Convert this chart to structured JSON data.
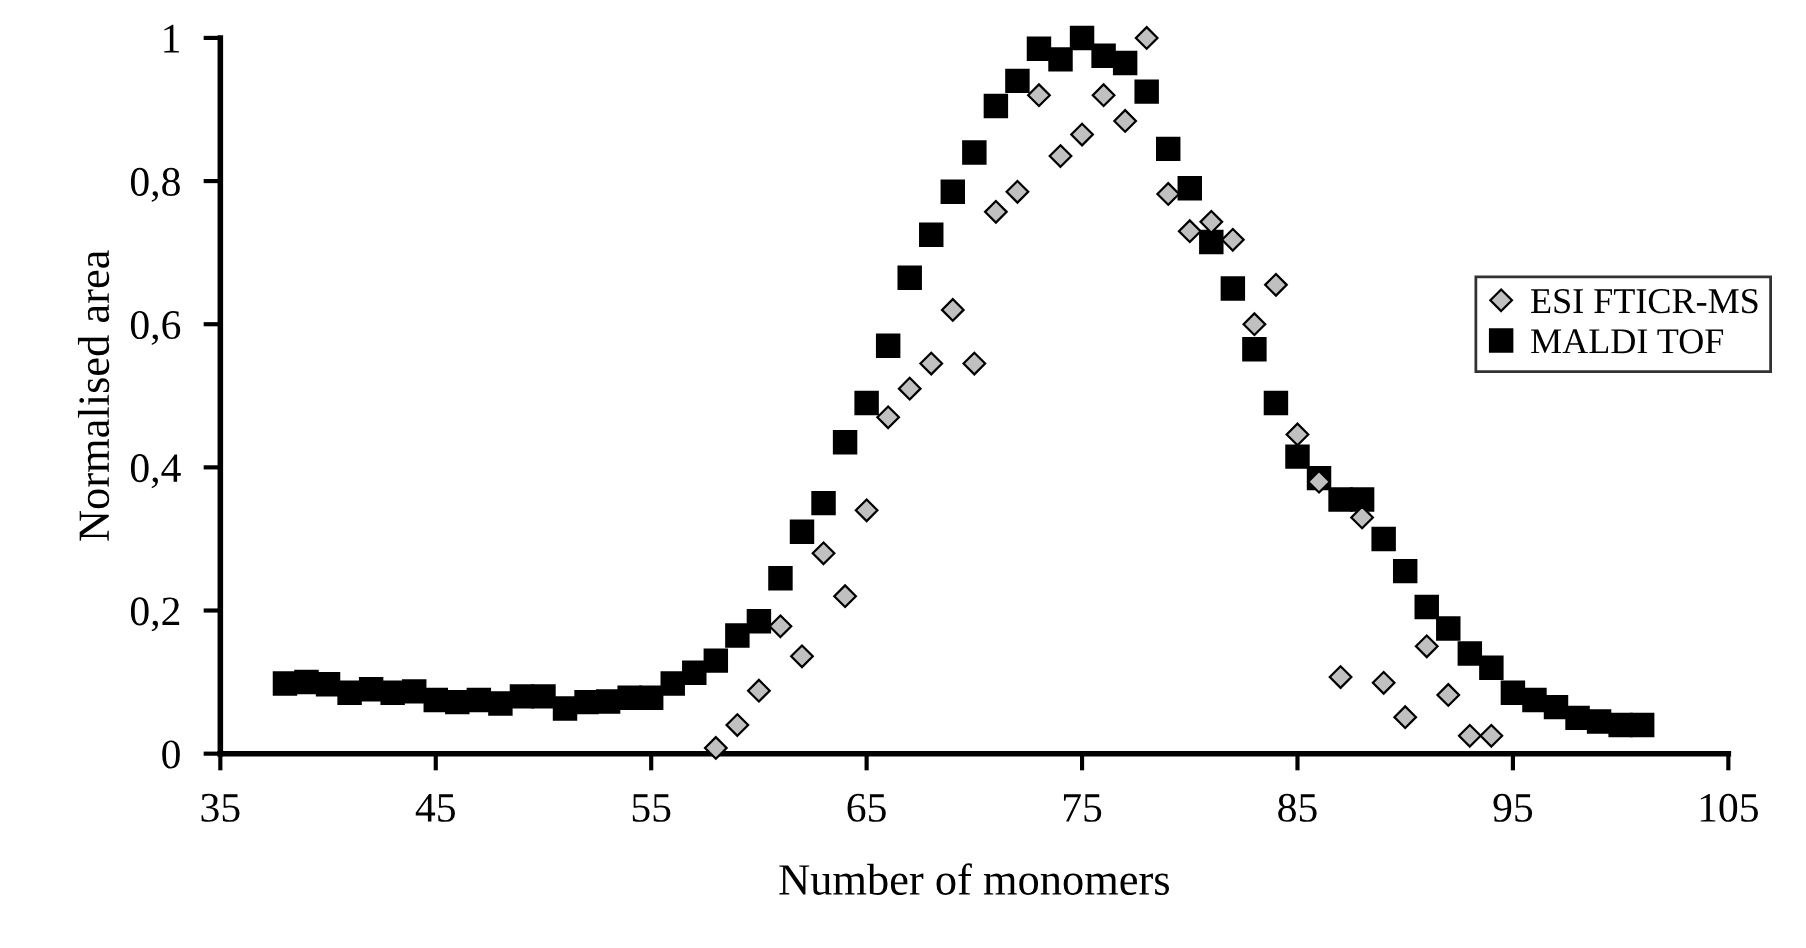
{
  "chart_data": {
    "type": "scatter",
    "xlabel": "Number of monomers",
    "ylabel": "Normalised area",
    "xlim": [
      35,
      105
    ],
    "xticks": [
      35,
      45,
      55,
      65,
      75,
      85,
      95,
      105
    ],
    "ylim": [
      0,
      1
    ],
    "yticks": [
      0,
      {
        "value": 0.2,
        "label": "0,2"
      },
      {
        "value": 0.4,
        "label": "0,4"
      },
      {
        "value": 0.6,
        "label": "0,6"
      },
      {
        "value": 0.8,
        "label": "0,8"
      },
      1
    ],
    "grid": false,
    "legend": "right",
    "series": [
      {
        "name": "ESI FTICR-MS",
        "color": "#c0c0c0",
        "marker": "diamond",
        "x": [
          58,
          59,
          60,
          61,
          62,
          63,
          64,
          65,
          66,
          67,
          68,
          69,
          70,
          71,
          72,
          73,
          74,
          75,
          76,
          77,
          78,
          79,
          80,
          81,
          82,
          83,
          84,
          85,
          86,
          87,
          88,
          89,
          90,
          91,
          92,
          93,
          94
        ],
        "values": [
          0.008,
          0.04,
          0.088,
          0.178,
          0.136,
          0.28,
          0.22,
          0.34,
          0.47,
          0.51,
          0.545,
          0.62,
          0.545,
          0.757,
          0.785,
          0.92,
          0.835,
          0.865,
          0.92,
          0.884,
          1.0,
          0.782,
          0.73,
          0.743,
          0.718,
          0.6,
          0.655,
          0.446,
          0.38,
          0.107,
          0.33,
          0.099,
          0.051,
          0.15,
          0.082,
          0.025,
          0.025
        ]
      },
      {
        "name": "MALDI TOF",
        "color": "#000000",
        "marker": "square",
        "x": [
          38,
          39,
          40,
          41,
          42,
          43,
          44,
          45,
          46,
          47,
          48,
          49,
          50,
          51,
          52,
          53,
          54,
          55,
          56,
          57,
          58,
          59,
          60,
          61,
          62,
          63,
          64,
          65,
          66,
          67,
          68,
          69,
          70,
          71,
          72,
          73,
          74,
          75,
          76,
          77,
          78,
          79,
          80,
          81,
          82,
          83,
          84,
          85,
          86,
          87,
          88,
          89,
          90,
          91,
          92,
          93,
          94,
          95,
          96,
          97,
          98,
          99,
          100,
          101
        ],
        "values": [
          0.098,
          0.1,
          0.097,
          0.085,
          0.09,
          0.085,
          0.087,
          0.075,
          0.072,
          0.075,
          0.07,
          0.08,
          0.08,
          0.063,
          0.072,
          0.073,
          0.078,
          0.078,
          0.098,
          0.113,
          0.13,
          0.165,
          0.185,
          0.245,
          0.31,
          0.35,
          0.435,
          0.49,
          0.57,
          0.665,
          0.725,
          0.785,
          0.84,
          0.905,
          0.94,
          0.985,
          0.97,
          1.0,
          0.975,
          0.965,
          0.925,
          0.845,
          0.79,
          0.715,
          0.65,
          0.565,
          0.49,
          0.415,
          0.385,
          0.355,
          0.355,
          0.3,
          0.255,
          0.205,
          0.175,
          0.14,
          0.12,
          0.085,
          0.075,
          0.065,
          0.05,
          0.045,
          0.04,
          0.04
        ]
      }
    ]
  }
}
